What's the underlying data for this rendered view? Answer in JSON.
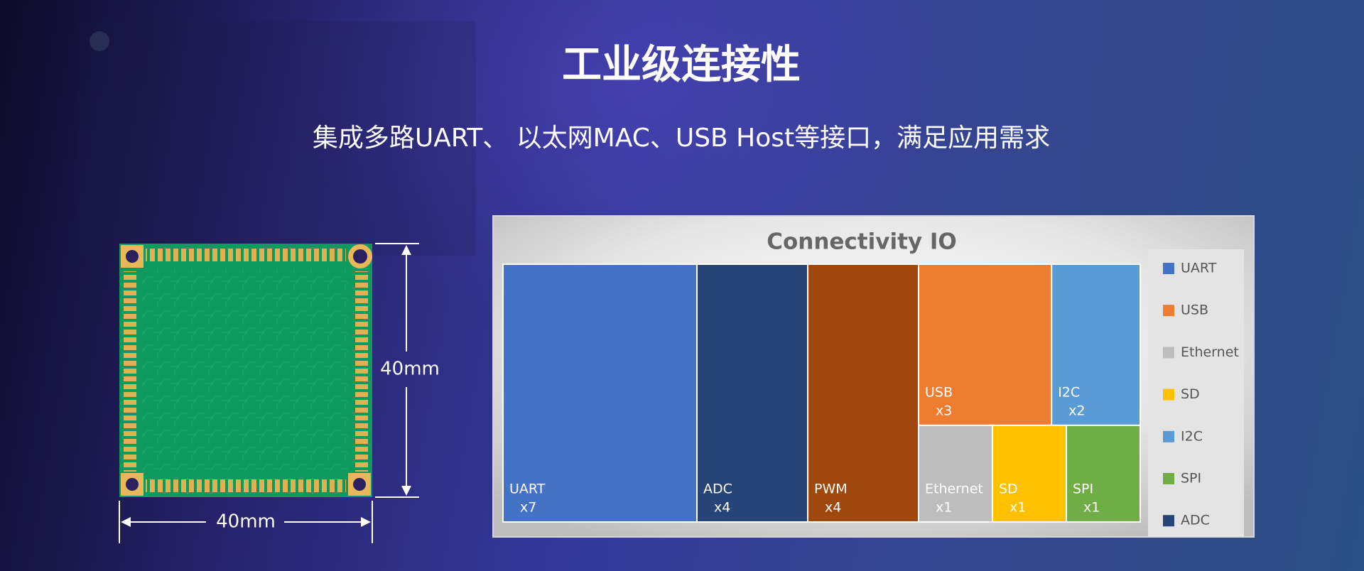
{
  "header": {
    "title": "工业级连接性",
    "subtitle": "集成多路UART、 以太网MAC、USB Host等接口，满足应用需求"
  },
  "dimensions": {
    "height": "40mm",
    "width": "40mm"
  },
  "chart_data": {
    "type": "treemap",
    "title": "Connectivity IO",
    "categories": [
      "UART",
      "ADC",
      "PWM",
      "USB",
      "I2C",
      "Ethernet",
      "SD",
      "SPI"
    ],
    "values": [
      7,
      4,
      4,
      3,
      2,
      1,
      1,
      1
    ],
    "value_labels": [
      "x7",
      "x4",
      "x4",
      "x3",
      "x2",
      "x1",
      "x1",
      "x1"
    ],
    "colors": [
      "#4472c4",
      "#264478",
      "#9e480e",
      "#ed7d31",
      "#5b9bd5",
      "#bcbdbc",
      "#ffc000",
      "#70ad47"
    ],
    "legend": [
      "UART",
      "USB",
      "Ethernet",
      "SD",
      "I2C",
      "SPI",
      "ADC"
    ]
  }
}
